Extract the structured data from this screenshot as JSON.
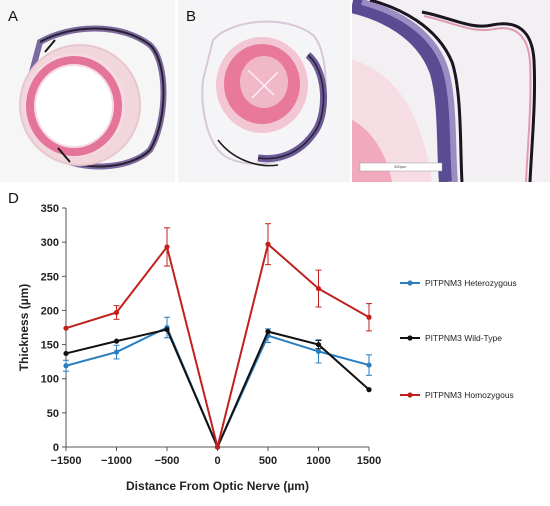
{
  "panels": {
    "a_letter": "A",
    "b_letter": "B",
    "d_letter": "D",
    "scale_bar_label": "300µm"
  },
  "colors": {
    "heterozygous": "#2b7fc0",
    "wild_type": "#111111",
    "homozygous": "#c0201e"
  },
  "chart_data": {
    "type": "line",
    "title": "",
    "xlabel": "Distance From Optic Nerve (µm)",
    "ylabel": "Thickness (µm)",
    "xlim": [
      -1500,
      1500
    ],
    "ylim": [
      0,
      350
    ],
    "x_ticks": [
      "−1500",
      "−1000",
      "−500",
      "0",
      "500",
      "1000",
      "1500"
    ],
    "y_ticks": [
      "0",
      "50",
      "100",
      "150",
      "200",
      "250",
      "300",
      "350"
    ],
    "x": [
      -1500,
      -1000,
      -500,
      0,
      500,
      1000,
      1500
    ],
    "grid": false,
    "legend_position": "right",
    "series": [
      {
        "name": "PITPNM3 Heterozygous",
        "values": [
          119,
          139,
          175,
          0,
          163,
          140,
          120
        ],
        "errors": [
          8,
          10,
          15,
          0,
          10,
          17,
          15
        ],
        "color": "#2b7fc0"
      },
      {
        "name": "PITPNM3 Wild-Type",
        "values": [
          137,
          155,
          172,
          0,
          169,
          150,
          84
        ],
        "errors": [
          0,
          0,
          0,
          0,
          0,
          6,
          0
        ],
        "color": "#111111"
      },
      {
        "name": "PITPNM3 Homozygous",
        "values": [
          174,
          197,
          293,
          0,
          297,
          232,
          190
        ],
        "errors": [
          0,
          10,
          28,
          0,
          30,
          27,
          20
        ],
        "color": "#c0201e"
      }
    ]
  }
}
